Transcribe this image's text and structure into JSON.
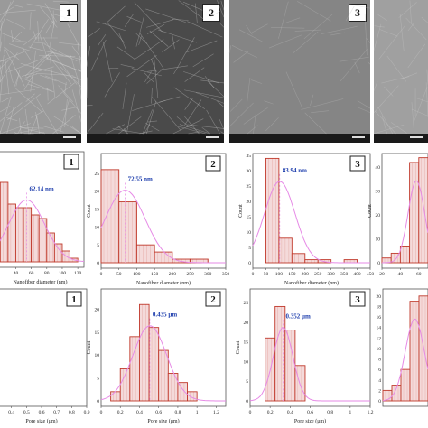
{
  "sem_panels": [
    {
      "label": "1",
      "texture": "fibrous-dense"
    },
    {
      "label": "2",
      "texture": "porous-dark"
    },
    {
      "label": "3",
      "texture": "smooth-gray"
    },
    {
      "label": "",
      "texture": "smooth-gray-light"
    }
  ],
  "colors": {
    "bar_fill": "#f4dada",
    "bar_edge": "#c0392b",
    "fit_line": "#e68ae6",
    "annotation": "#1f3fae"
  },
  "chart_data": [
    {
      "type": "bar",
      "panel": "1",
      "xlabel": "Nanofiber diameter (nm)",
      "ylabel": "",
      "x_ticks": [
        "40",
        "60",
        "80",
        "100",
        "120"
      ],
      "bin_edges": [
        20,
        30,
        40,
        50,
        60,
        70,
        80,
        90,
        100,
        110,
        120
      ],
      "values": [
        22,
        16,
        15,
        15,
        13,
        12,
        8,
        5,
        3,
        1
      ],
      "ylim": [
        0,
        30
      ],
      "annotation": "62.14 nm"
    },
    {
      "type": "bar",
      "panel": "2",
      "xlabel": "Nanofiber diameter (nm)",
      "ylabel": "Count",
      "x_ticks": [
        "0",
        "50",
        "100",
        "150",
        "200",
        "250",
        "300",
        "350"
      ],
      "y_ticks": [
        "0",
        "5",
        "10",
        "15",
        "20",
        "25"
      ],
      "bin_edges": [
        0,
        50,
        100,
        150,
        200,
        250,
        300
      ],
      "values": [
        26,
        17,
        5,
        3,
        1,
        1
      ],
      "ylim": [
        0,
        30
      ],
      "xlim": [
        0,
        350
      ],
      "annotation": "72.55 nm"
    },
    {
      "type": "bar",
      "panel": "3",
      "xlabel": "Nanofiber diameter (nm)",
      "ylabel": "Count",
      "x_ticks": [
        "0",
        "50",
        "100",
        "150",
        "200",
        "250",
        "300",
        "350",
        "400",
        "450"
      ],
      "y_ticks": [
        "0",
        "5",
        "10",
        "15",
        "20",
        "25",
        "30",
        "35"
      ],
      "bin_edges": [
        50,
        100,
        150,
        200,
        250,
        300,
        350,
        400
      ],
      "values": [
        34,
        8,
        3,
        1,
        1,
        0,
        1
      ],
      "ylim": [
        0,
        35
      ],
      "xlim": [
        0,
        450
      ],
      "annotation": "83.94 nm"
    },
    {
      "type": "bar",
      "panel": "",
      "xlabel": "",
      "ylabel": "Count",
      "x_ticks": [
        "20",
        "40",
        "60"
      ],
      "y_ticks": [
        "0",
        "10",
        "20",
        "30",
        "40"
      ],
      "bin_edges": [
        20,
        30,
        40,
        50,
        60,
        70
      ],
      "values": [
        2,
        4,
        7,
        42,
        44
      ],
      "ylim": [
        0,
        45
      ],
      "xlim": [
        20,
        70
      ],
      "annotation": ""
    },
    {
      "type": "bar",
      "panel": "1",
      "xlabel": "Pore size (μm)",
      "ylabel": "",
      "x_ticks": [
        "0.3",
        "0.4",
        "0.5",
        "0.6",
        "0.7",
        "0.8",
        "0.9"
      ],
      "bin_edges": [],
      "values": [],
      "ylim": [
        0,
        20
      ],
      "xlim": [
        0.3,
        0.9
      ],
      "annotation": ""
    },
    {
      "type": "bar",
      "panel": "2",
      "xlabel": "Pore size (μm)",
      "ylabel": "Count",
      "x_ticks": [
        "0",
        "0.2",
        "0.4",
        "0.6",
        "0.8",
        "1",
        "1.2"
      ],
      "y_ticks": [
        "0",
        "5",
        "10",
        "15",
        "20"
      ],
      "bin_edges": [
        0.1,
        0.2,
        0.3,
        0.4,
        0.5,
        0.6,
        0.7,
        0.8,
        0.9,
        1.0
      ],
      "values": [
        2,
        7,
        14,
        21,
        16,
        11,
        6,
        4,
        2
      ],
      "ylim": [
        0,
        24
      ],
      "xlim": [
        0,
        1.3
      ],
      "annotation": "0.435 μm"
    },
    {
      "type": "bar",
      "panel": "3",
      "xlabel": "Pore size (μm)",
      "ylabel": "Count",
      "x_ticks": [
        "0",
        "0.2",
        "0.4",
        "0.6",
        "0.8",
        "1",
        "1.2"
      ],
      "y_ticks": [
        "0",
        "5",
        "10",
        "15",
        "20",
        "25"
      ],
      "bin_edges": [
        0.15,
        0.25,
        0.35,
        0.45,
        0.55
      ],
      "values": [
        16,
        24,
        18,
        9
      ],
      "ylim": [
        0,
        28
      ],
      "xlim": [
        0,
        1.2
      ],
      "annotation": "0.352 μm"
    },
    {
      "type": "bar",
      "panel": "",
      "xlabel": "",
      "ylabel": "",
      "x_ticks": [],
      "y_ticks": [
        "0",
        "2",
        "4",
        "6",
        "8",
        "10",
        "12",
        "14",
        "16",
        "18",
        "20"
      ],
      "bin_edges": [
        0,
        0.1,
        0.2,
        0.3,
        0.4,
        0.5
      ],
      "values": [
        2,
        3,
        6,
        19,
        20
      ],
      "ylim": [
        0,
        21
      ],
      "xlim": [
        0,
        0.5
      ],
      "annotation": ""
    }
  ]
}
